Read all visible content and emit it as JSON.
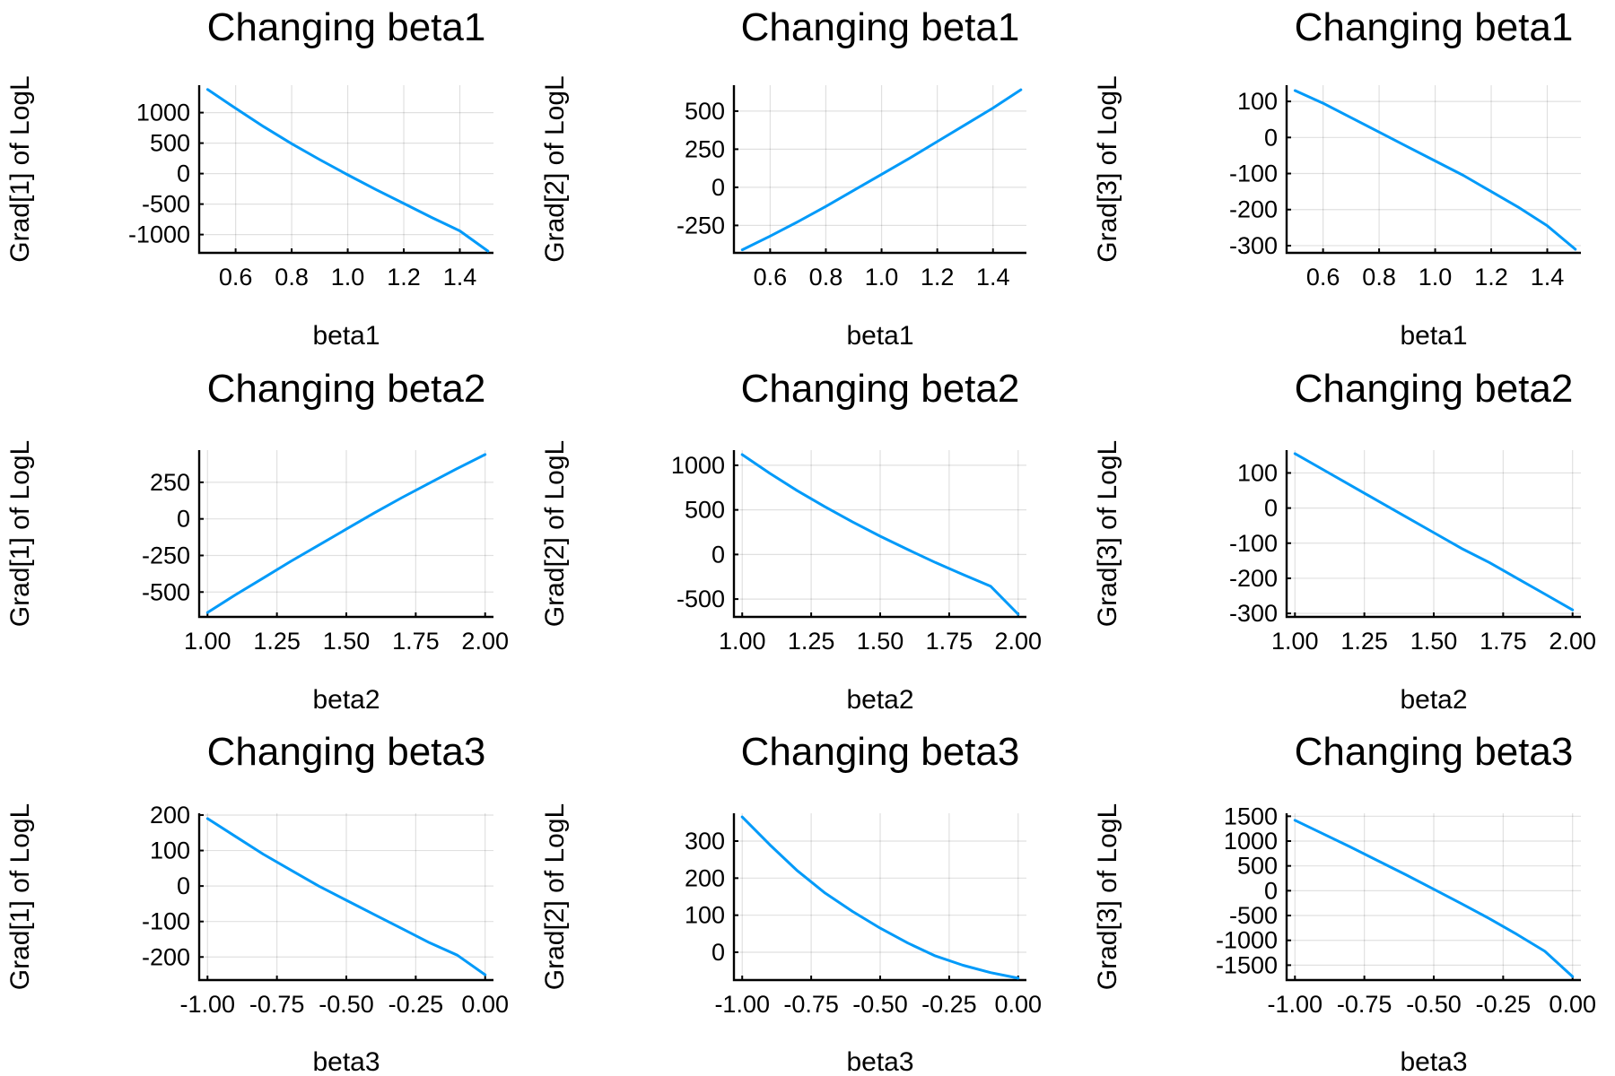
{
  "colors": {
    "series": "#009AF9"
  },
  "chart_data": [
    {
      "type": "line",
      "title": "Changing beta1",
      "xlabel": "beta1",
      "ylabel": "Grad[1] of LogL",
      "xlim": [
        0.47,
        1.52
      ],
      "ylim": [
        -1300,
        1450
      ],
      "xticks": [
        0.6,
        0.8,
        1.0,
        1.2,
        1.4
      ],
      "xticklabels": [
        "0.6",
        "0.8",
        "1.0",
        "1.2",
        "1.4"
      ],
      "yticks": [
        -1000,
        -500,
        0,
        500,
        1000
      ],
      "yticklabels": [
        "-1000",
        "-500",
        "0",
        "500",
        "1000"
      ],
      "series": [
        {
          "x": [
            0.5,
            0.6,
            0.7,
            0.8,
            0.9,
            1.0,
            1.1,
            1.2,
            1.3,
            1.4,
            1.5
          ],
          "y": [
            1380,
            1070,
            770,
            490,
            230,
            -20,
            -260,
            -490,
            -720,
            -940,
            -1270
          ]
        }
      ]
    },
    {
      "type": "line",
      "title": "Changing beta1",
      "xlabel": "beta1",
      "ylabel": "Grad[2] of LogL",
      "xlim": [
        0.47,
        1.52
      ],
      "ylim": [
        -430,
        670
      ],
      "xticks": [
        0.6,
        0.8,
        1.0,
        1.2,
        1.4
      ],
      "xticklabels": [
        "0.6",
        "0.8",
        "1.0",
        "1.2",
        "1.4"
      ],
      "yticks": [
        -250,
        0,
        250,
        500
      ],
      "yticklabels": [
        "-250",
        "0",
        "250",
        "500"
      ],
      "series": [
        {
          "x": [
            0.5,
            0.6,
            0.7,
            0.8,
            0.9,
            1.0,
            1.1,
            1.2,
            1.3,
            1.4,
            1.5
          ],
          "y": [
            -410,
            -320,
            -225,
            -125,
            -20,
            85,
            190,
            300,
            410,
            520,
            640
          ]
        }
      ]
    },
    {
      "type": "line",
      "title": "Changing beta1",
      "xlabel": "beta1",
      "ylabel": "Grad[3] of LogL",
      "xlim": [
        0.47,
        1.52
      ],
      "ylim": [
        -320,
        145
      ],
      "xticks": [
        0.6,
        0.8,
        1.0,
        1.2,
        1.4
      ],
      "xticklabels": [
        "0.6",
        "0.8",
        "1.0",
        "1.2",
        "1.4"
      ],
      "yticks": [
        -300,
        -200,
        -100,
        0,
        100
      ],
      "yticklabels": [
        "-300",
        "-200",
        "-100",
        "0",
        "100"
      ],
      "series": [
        {
          "x": [
            0.5,
            0.6,
            0.7,
            0.8,
            0.9,
            1.0,
            1.1,
            1.2,
            1.3,
            1.4,
            1.5
          ],
          "y": [
            130,
            95,
            55,
            15,
            -25,
            -65,
            -105,
            -150,
            -195,
            -245,
            -310
          ]
        }
      ]
    },
    {
      "type": "line",
      "title": "Changing beta2",
      "xlabel": "beta2",
      "ylabel": "Grad[1] of LogL",
      "xlim": [
        0.97,
        2.03
      ],
      "ylim": [
        -670,
        470
      ],
      "xticks": [
        1.0,
        1.25,
        1.5,
        1.75,
        2.0
      ],
      "xticklabels": [
        "1.00",
        "1.25",
        "1.50",
        "1.75",
        "2.00"
      ],
      "yticks": [
        -500,
        -250,
        0,
        250
      ],
      "yticklabels": [
        "-500",
        "-250",
        "0",
        "250"
      ],
      "series": [
        {
          "x": [
            1.0,
            1.1,
            1.2,
            1.3,
            1.4,
            1.5,
            1.6,
            1.7,
            1.8,
            1.9,
            2.0
          ],
          "y": [
            -640,
            -520,
            -405,
            -290,
            -180,
            -70,
            40,
            145,
            245,
            345,
            440
          ]
        }
      ]
    },
    {
      "type": "line",
      "title": "Changing beta2",
      "xlabel": "beta2",
      "ylabel": "Grad[2] of LogL",
      "xlim": [
        0.97,
        2.03
      ],
      "ylim": [
        -700,
        1170
      ],
      "xticks": [
        1.0,
        1.25,
        1.5,
        1.75,
        2.0
      ],
      "xticklabels": [
        "1.00",
        "1.25",
        "1.50",
        "1.75",
        "2.00"
      ],
      "yticks": [
        -500,
        0,
        500,
        1000
      ],
      "yticklabels": [
        "-500",
        "0",
        "500",
        "1000"
      ],
      "series": [
        {
          "x": [
            1.0,
            1.1,
            1.2,
            1.3,
            1.4,
            1.5,
            1.6,
            1.7,
            1.8,
            1.9,
            2.0
          ],
          "y": [
            1120,
            910,
            715,
            535,
            365,
            205,
            55,
            -90,
            -225,
            -355,
            -670
          ]
        }
      ]
    },
    {
      "type": "line",
      "title": "Changing beta2",
      "xlabel": "beta2",
      "ylabel": "Grad[3] of LogL",
      "xlim": [
        0.97,
        2.03
      ],
      "ylim": [
        -310,
        165
      ],
      "xticks": [
        1.0,
        1.25,
        1.5,
        1.75,
        2.0
      ],
      "xticklabels": [
        "1.00",
        "1.25",
        "1.50",
        "1.75",
        "2.00"
      ],
      "yticks": [
        -300,
        -200,
        -100,
        0,
        100
      ],
      "yticklabels": [
        "-300",
        "-200",
        "-100",
        "0",
        "100"
      ],
      "series": [
        {
          "x": [
            1.0,
            1.1,
            1.2,
            1.3,
            1.4,
            1.5,
            1.6,
            1.7,
            1.8,
            1.9,
            2.0
          ],
          "y": [
            155,
            110,
            65,
            20,
            -25,
            -70,
            -115,
            -155,
            -200,
            -245,
            -290
          ]
        }
      ]
    },
    {
      "type": "line",
      "title": "Changing beta3",
      "xlabel": "beta3",
      "ylabel": "Grad[1] of LogL",
      "xlim": [
        -1.03,
        0.03
      ],
      "ylim": [
        -265,
        205
      ],
      "xticks": [
        -1.0,
        -0.75,
        -0.5,
        -0.25,
        0.0
      ],
      "xticklabels": [
        "-1.00",
        "-0.75",
        "-0.50",
        "-0.25",
        "0.00"
      ],
      "yticks": [
        -200,
        -100,
        0,
        100,
        200
      ],
      "yticklabels": [
        "-200",
        "-100",
        "0",
        "100",
        "200"
      ],
      "series": [
        {
          "x": [
            -1.0,
            -0.9,
            -0.8,
            -0.7,
            -0.6,
            -0.5,
            -0.4,
            -0.3,
            -0.2,
            -0.1,
            0.0
          ],
          "y": [
            190,
            140,
            90,
            45,
            0,
            -40,
            -80,
            -120,
            -160,
            -195,
            -250
          ]
        }
      ]
    },
    {
      "type": "line",
      "title": "Changing beta3",
      "xlabel": "beta3",
      "ylabel": "Grad[2] of LogL",
      "xlim": [
        -1.03,
        0.03
      ],
      "ylim": [
        -75,
        375
      ],
      "xticks": [
        -1.0,
        -0.75,
        -0.5,
        -0.25,
        0.0
      ],
      "xticklabels": [
        "-1.00",
        "-0.75",
        "-0.50",
        "-0.25",
        "0.00"
      ],
      "yticks": [
        0,
        100,
        200,
        300
      ],
      "yticklabels": [
        "0",
        "100",
        "200",
        "300"
      ],
      "series": [
        {
          "x": [
            -1.0,
            -0.9,
            -0.8,
            -0.7,
            -0.6,
            -0.5,
            -0.4,
            -0.3,
            -0.2,
            -0.1,
            0.0
          ],
          "y": [
            365,
            290,
            220,
            160,
            110,
            65,
            25,
            -10,
            -35,
            -55,
            -70
          ]
        }
      ]
    },
    {
      "type": "line",
      "title": "Changing beta3",
      "xlabel": "beta3",
      "ylabel": "Grad[3] of LogL",
      "xlim": [
        -1.03,
        0.03
      ],
      "ylim": [
        -1800,
        1560
      ],
      "xticks": [
        -1.0,
        -0.75,
        -0.5,
        -0.25,
        0.0
      ],
      "xticklabels": [
        "-1.00",
        "-0.75",
        "-0.50",
        "-0.25",
        "0.00"
      ],
      "yticks": [
        -1500,
        -1000,
        -500,
        0,
        500,
        1000,
        1500
      ],
      "yticklabels": [
        "-1500",
        "-1000",
        "-500",
        "0",
        "500",
        "1000",
        "1500"
      ],
      "series": [
        {
          "x": [
            -1.0,
            -0.9,
            -0.8,
            -0.7,
            -0.6,
            -0.5,
            -0.4,
            -0.3,
            -0.2,
            -0.1,
            0.0
          ],
          "y": [
            1420,
            1150,
            880,
            600,
            320,
            30,
            -260,
            -560,
            -880,
            -1220,
            -1730
          ]
        }
      ]
    }
  ]
}
